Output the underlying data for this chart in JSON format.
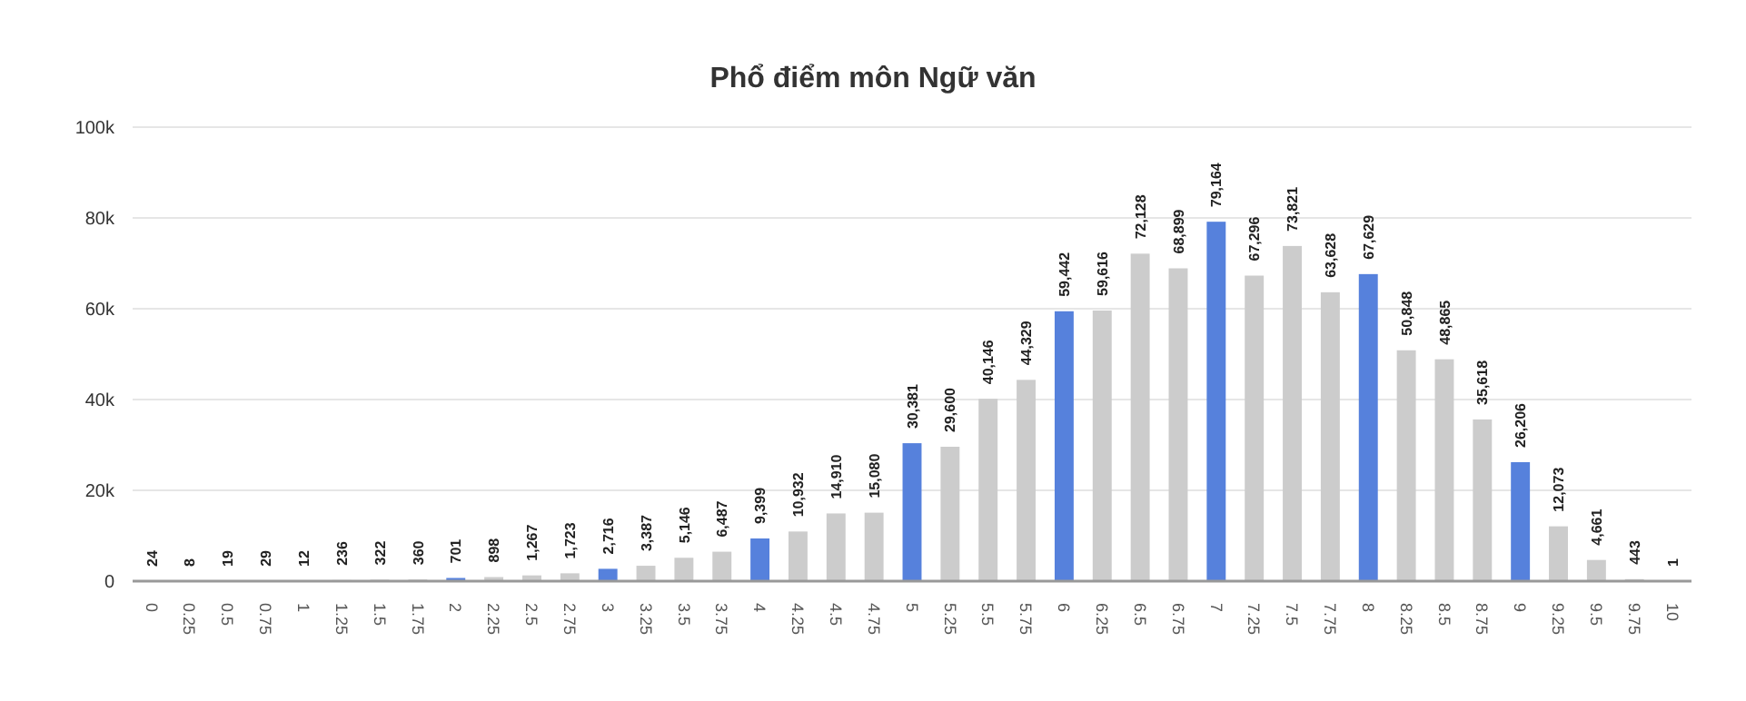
{
  "chart_data": {
    "type": "bar",
    "title": "Phổ điểm môn Ngữ văn",
    "categories": [
      "0",
      "0.25",
      "0.5",
      "0.75",
      "1",
      "1.25",
      "1.5",
      "1.75",
      "2",
      "2.25",
      "2.5",
      "2.75",
      "3",
      "3.25",
      "3.5",
      "3.75",
      "4",
      "4.25",
      "4.5",
      "4.75",
      "5",
      "5.25",
      "5.5",
      "5.75",
      "6",
      "6.25",
      "6.5",
      "6.75",
      "7",
      "7.25",
      "7.5",
      "7.75",
      "8",
      "8.25",
      "8.5",
      "8.75",
      "9",
      "9.25",
      "9.5",
      "9.75",
      "10"
    ],
    "values": [
      24,
      8,
      19,
      29,
      12,
      236,
      322,
      360,
      701,
      898,
      1267,
      1723,
      2716,
      3387,
      5146,
      6487,
      9399,
      10932,
      14910,
      15080,
      30381,
      29600,
      40146,
      44329,
      59442,
      59616,
      72128,
      68899,
      79164,
      67296,
      73821,
      63628,
      67629,
      50848,
      48865,
      35618,
      26206,
      12073,
      4661,
      443,
      1
    ],
    "value_labels": [
      "24",
      "8",
      "19",
      "29",
      "12",
      "236",
      "322",
      "360",
      "701",
      "898",
      "1,267",
      "1,723",
      "2,716",
      "3,387",
      "5,146",
      "6,487",
      "9,399",
      "10,932",
      "14,910",
      "15,080",
      "30,381",
      "29,600",
      "40,146",
      "44,329",
      "59,442",
      "59,616",
      "72,128",
      "68,899",
      "79,164",
      "67,296",
      "73,821",
      "63,628",
      "67,629",
      "50,848",
      "48,865",
      "35,618",
      "26,206",
      "12,073",
      "4,661",
      "443",
      "1"
    ],
    "colors": [
      "#5681dc",
      "#cccccc",
      "#cccccc",
      "#cccccc",
      "#5681dc",
      "#cccccc",
      "#cccccc",
      "#cccccc",
      "#5681dc",
      "#cccccc",
      "#cccccc",
      "#cccccc",
      "#5681dc",
      "#cccccc",
      "#cccccc",
      "#cccccc",
      "#5681dc",
      "#cccccc",
      "#cccccc",
      "#cccccc",
      "#5681dc",
      "#cccccc",
      "#cccccc",
      "#cccccc",
      "#5681dc",
      "#cccccc",
      "#cccccc",
      "#cccccc",
      "#5681dc",
      "#cccccc",
      "#cccccc",
      "#cccccc",
      "#5681dc",
      "#cccccc",
      "#cccccc",
      "#cccccc",
      "#5681dc",
      "#cccccc",
      "#cccccc",
      "#cccccc",
      "#5681dc"
    ],
    "ylim": [
      0,
      100000
    ],
    "yticks": [
      {
        "value": 0,
        "label": "0"
      },
      {
        "value": 20000,
        "label": "20k"
      },
      {
        "value": 40000,
        "label": "40k"
      },
      {
        "value": 60000,
        "label": "60k"
      },
      {
        "value": 80000,
        "label": "80k"
      },
      {
        "value": 100000,
        "label": "100k"
      }
    ],
    "grid": "y"
  }
}
